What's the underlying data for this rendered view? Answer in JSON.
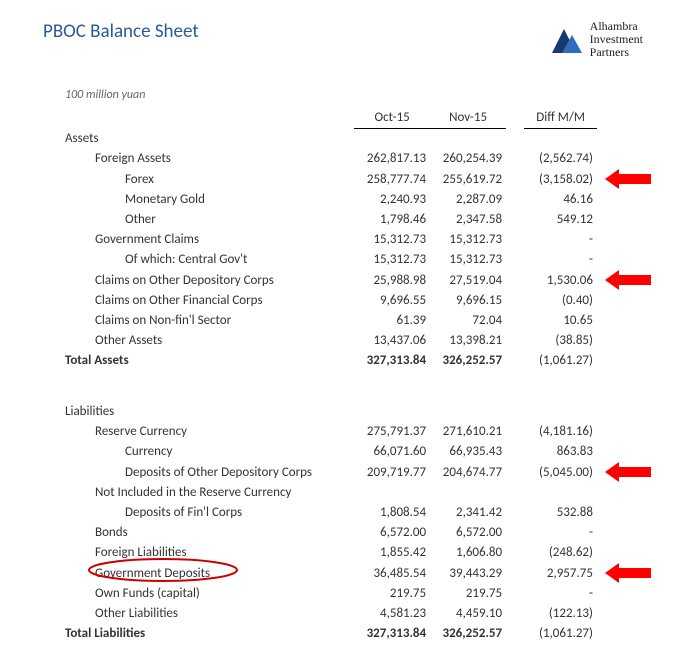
{
  "title": "PBOC Balance Sheet",
  "logo": {
    "line1": "Alhambra",
    "line2": "Investment",
    "line3": "Partners"
  },
  "subtitle": "100 million yuan",
  "columns": {
    "c1": "Oct-15",
    "c2": "Nov-15",
    "diff": "Diff M/M"
  },
  "assets": {
    "heading": "Assets",
    "rows": [
      {
        "label": "Foreign Assets",
        "indent": 1,
        "v1": "262,817.13",
        "v2": "260,254.39",
        "diff": "(2,562.74)",
        "arrow": false
      },
      {
        "label": "Forex",
        "indent": 2,
        "v1": "258,777.74",
        "v2": "255,619.72",
        "diff": "(3,158.02)",
        "arrow": true
      },
      {
        "label": "Monetary Gold",
        "indent": 2,
        "v1": "2,240.93",
        "v2": "2,287.09",
        "diff": "46.16",
        "arrow": false
      },
      {
        "label": "Other",
        "indent": 2,
        "v1": "1,798.46",
        "v2": "2,347.58",
        "diff": "549.12",
        "arrow": false
      },
      {
        "label": "Government Claims",
        "indent": 1,
        "v1": "15,312.73",
        "v2": "15,312.73",
        "diff": "-",
        "arrow": false
      },
      {
        "label": "Of which: Central Gov't",
        "indent": 2,
        "v1": "15,312.73",
        "v2": "15,312.73",
        "diff": "-",
        "arrow": false
      },
      {
        "label": "Claims on Other Depository Corps",
        "indent": 1,
        "v1": "25,988.98",
        "v2": "27,519.04",
        "diff": "1,530.06",
        "arrow": true
      },
      {
        "label": "Claims on Other Financial Corps",
        "indent": 1,
        "v1": "9,696.55",
        "v2": "9,696.15",
        "diff": "(0.40)",
        "arrow": false
      },
      {
        "label": "Claims on Non-fin'l Sector",
        "indent": 1,
        "v1": "61.39",
        "v2": "72.04",
        "diff": "10.65",
        "arrow": false
      },
      {
        "label": "Other Assets",
        "indent": 1,
        "v1": "13,437.06",
        "v2": "13,398.21",
        "diff": "(38.85)",
        "arrow": false
      }
    ],
    "total": {
      "label": "Total Assets",
      "v1": "327,313.84",
      "v2": "326,252.57",
      "diff": "(1,061.27)"
    }
  },
  "liabilities": {
    "heading": "Liabilities",
    "rows": [
      {
        "label": "Reserve Currency",
        "indent": 1,
        "v1": "275,791.37",
        "v2": "271,610.21",
        "diff": "(4,181.16)",
        "arrow": false
      },
      {
        "label": "Currency",
        "indent": 2,
        "v1": "66,071.60",
        "v2": "66,935.43",
        "diff": "863.83",
        "arrow": false
      },
      {
        "label": "Deposits of Other Depository Corps",
        "indent": 2,
        "v1": "209,719.77",
        "v2": "204,674.77",
        "diff": "(5,045.00)",
        "arrow": true
      },
      {
        "label": "Not Included in the Reserve Currency",
        "indent": 1,
        "v1": "",
        "v2": "",
        "diff": "",
        "arrow": false
      },
      {
        "label": "Deposits of Fin'l Corps",
        "indent": 2,
        "v1": "1,808.54",
        "v2": "2,341.42",
        "diff": "532.88",
        "arrow": false
      },
      {
        "label": "Bonds",
        "indent": 1,
        "v1": "6,572.00",
        "v2": "6,572.00",
        "diff": "-",
        "arrow": false
      },
      {
        "label": "Foreign Liabilities",
        "indent": 1,
        "v1": "1,855.42",
        "v2": "1,606.80",
        "diff": "(248.62)",
        "arrow": false
      },
      {
        "label": "Government Deposits",
        "indent": 1,
        "v1": "36,485.54",
        "v2": "39,443.29",
        "diff": "2,957.75",
        "arrow": true,
        "circled": true
      },
      {
        "label": "Own Funds (capital)",
        "indent": 1,
        "v1": "219.75",
        "v2": "219.75",
        "diff": "-",
        "arrow": false
      },
      {
        "label": "Other Liabilities",
        "indent": 1,
        "v1": "4,581.23",
        "v2": "4,459.10",
        "diff": "(122.13)",
        "arrow": false
      }
    ],
    "total": {
      "label": "Total Liabilities",
      "v1": "327,313.84",
      "v2": "326,252.57",
      "diff": "(1,061.27)"
    }
  },
  "colors": {
    "title": "#2a5a9c",
    "arrow": "#ff0000",
    "circle": "#cc0000",
    "text": "#333"
  }
}
